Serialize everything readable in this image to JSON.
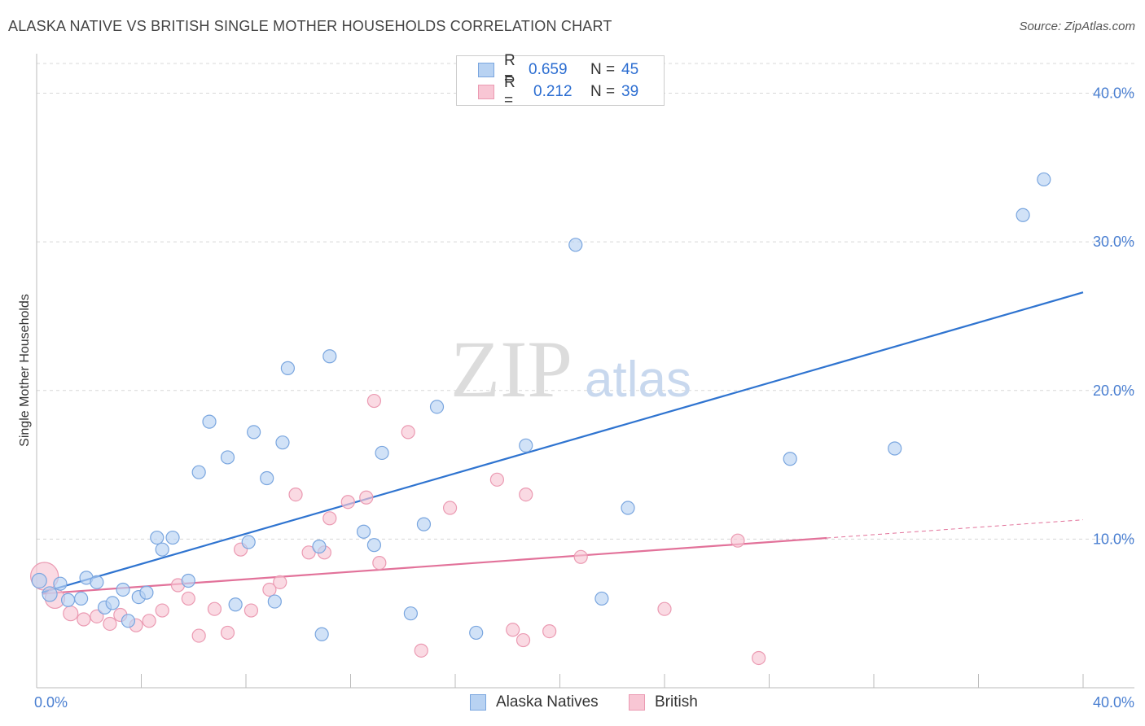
{
  "header": {
    "title": "ALASKA NATIVE VS BRITISH SINGLE MOTHER HOUSEHOLDS CORRELATION CHART",
    "source": "Source: ZipAtlas.com"
  },
  "watermark": {
    "zip": "ZIP",
    "atlas": "atlas"
  },
  "legend": {
    "series1": {
      "r_label": "R =",
      "r_value": "0.659",
      "n_label": "N =",
      "n_value": "45"
    },
    "series2": {
      "r_label": "R =",
      "r_value": "0.212",
      "n_label": "N =",
      "n_value": "39"
    }
  },
  "bottom_legend": {
    "series1": "Alaska Natives",
    "series2": "British"
  },
  "colors": {
    "blue_fill": "#b8d2f2",
    "blue_stroke": "#7aa6df",
    "blue_line": "#2f74d0",
    "pink_fill": "#f8c6d4",
    "pink_stroke": "#eb9ab2",
    "pink_line": "#e2729a",
    "grid": "#d8d8d8",
    "tick_text": "#4a7fd1"
  },
  "chart_data": {
    "type": "scatter",
    "title": "ALASKA NATIVE VS BRITISH SINGLE MOTHER HOUSEHOLDS CORRELATION CHART",
    "xlabel": "",
    "ylabel": "Single Mother Households",
    "xlim": [
      0,
      40
    ],
    "ylim": [
      0,
      42
    ],
    "x_tick_labels": [
      "0.0%",
      "40.0%"
    ],
    "y_ticks": [
      10,
      20,
      30,
      40
    ],
    "y_tick_labels": [
      "10.0%",
      "20.0%",
      "30.0%",
      "40.0%"
    ],
    "grid": true,
    "legend_position": "top-center",
    "series": [
      {
        "name": "Alaska Natives",
        "r": 0.659,
        "n": 45,
        "trend": {
          "x": [
            0,
            40
          ],
          "y": [
            6.3,
            26.6
          ],
          "dashed_from": null
        },
        "points": [
          {
            "x": 0.1,
            "y": 7.2,
            "s": 9
          },
          {
            "x": 0.5,
            "y": 6.3,
            "s": 9
          },
          {
            "x": 0.9,
            "y": 7.0,
            "s": 8
          },
          {
            "x": 1.2,
            "y": 5.9,
            "s": 8
          },
          {
            "x": 1.7,
            "y": 6.0,
            "s": 8
          },
          {
            "x": 1.9,
            "y": 7.4,
            "s": 8
          },
          {
            "x": 2.3,
            "y": 7.1,
            "s": 8
          },
          {
            "x": 2.6,
            "y": 5.4,
            "s": 8
          },
          {
            "x": 2.9,
            "y": 5.7,
            "s": 8
          },
          {
            "x": 3.3,
            "y": 6.6,
            "s": 8
          },
          {
            "x": 3.5,
            "y": 4.5,
            "s": 8
          },
          {
            "x": 3.9,
            "y": 6.1,
            "s": 8
          },
          {
            "x": 4.2,
            "y": 6.4,
            "s": 8
          },
          {
            "x": 4.6,
            "y": 10.1,
            "s": 8
          },
          {
            "x": 4.8,
            "y": 9.3,
            "s": 8
          },
          {
            "x": 5.2,
            "y": 10.1,
            "s": 8
          },
          {
            "x": 5.8,
            "y": 7.2,
            "s": 8
          },
          {
            "x": 6.2,
            "y": 14.5,
            "s": 8
          },
          {
            "x": 6.6,
            "y": 17.9,
            "s": 8
          },
          {
            "x": 7.3,
            "y": 15.5,
            "s": 8
          },
          {
            "x": 7.6,
            "y": 5.6,
            "s": 8
          },
          {
            "x": 8.1,
            "y": 9.8,
            "s": 8
          },
          {
            "x": 8.3,
            "y": 17.2,
            "s": 8
          },
          {
            "x": 8.8,
            "y": 14.1,
            "s": 8
          },
          {
            "x": 9.1,
            "y": 5.8,
            "s": 8
          },
          {
            "x": 9.4,
            "y": 16.5,
            "s": 8
          },
          {
            "x": 9.6,
            "y": 21.5,
            "s": 8
          },
          {
            "x": 10.8,
            "y": 9.5,
            "s": 8
          },
          {
            "x": 10.9,
            "y": 3.6,
            "s": 8
          },
          {
            "x": 11.2,
            "y": 22.3,
            "s": 8
          },
          {
            "x": 12.5,
            "y": 10.5,
            "s": 8
          },
          {
            "x": 12.9,
            "y": 9.6,
            "s": 8
          },
          {
            "x": 13.2,
            "y": 15.8,
            "s": 8
          },
          {
            "x": 14.3,
            "y": 5.0,
            "s": 8
          },
          {
            "x": 14.8,
            "y": 11.0,
            "s": 8
          },
          {
            "x": 15.3,
            "y": 18.9,
            "s": 8
          },
          {
            "x": 16.8,
            "y": 3.7,
            "s": 8
          },
          {
            "x": 18.7,
            "y": 16.3,
            "s": 8
          },
          {
            "x": 20.6,
            "y": 29.8,
            "s": 8
          },
          {
            "x": 21.6,
            "y": 6.0,
            "s": 8
          },
          {
            "x": 22.6,
            "y": 12.1,
            "s": 8
          },
          {
            "x": 28.8,
            "y": 15.4,
            "s": 8
          },
          {
            "x": 32.8,
            "y": 16.1,
            "s": 8
          },
          {
            "x": 37.7,
            "y": 31.8,
            "s": 8
          },
          {
            "x": 38.5,
            "y": 34.2,
            "s": 8
          }
        ]
      },
      {
        "name": "British",
        "r": 0.212,
        "n": 39,
        "trend": {
          "x": [
            0,
            40
          ],
          "y": [
            6.3,
            11.3
          ],
          "dashed_from": 30.2
        },
        "points": [
          {
            "x": 0.3,
            "y": 7.5,
            "s": 17
          },
          {
            "x": 0.7,
            "y": 6.0,
            "s": 12
          },
          {
            "x": 1.3,
            "y": 5.0,
            "s": 9
          },
          {
            "x": 1.8,
            "y": 4.6,
            "s": 8
          },
          {
            "x": 2.3,
            "y": 4.8,
            "s": 8
          },
          {
            "x": 2.8,
            "y": 4.3,
            "s": 8
          },
          {
            "x": 3.2,
            "y": 4.9,
            "s": 8
          },
          {
            "x": 3.8,
            "y": 4.2,
            "s": 8
          },
          {
            "x": 4.3,
            "y": 4.5,
            "s": 8
          },
          {
            "x": 4.8,
            "y": 5.2,
            "s": 8
          },
          {
            "x": 5.4,
            "y": 6.9,
            "s": 8
          },
          {
            "x": 5.8,
            "y": 6.0,
            "s": 8
          },
          {
            "x": 6.2,
            "y": 3.5,
            "s": 8
          },
          {
            "x": 6.8,
            "y": 5.3,
            "s": 8
          },
          {
            "x": 7.3,
            "y": 3.7,
            "s": 8
          },
          {
            "x": 7.8,
            "y": 9.3,
            "s": 8
          },
          {
            "x": 8.2,
            "y": 5.2,
            "s": 8
          },
          {
            "x": 8.9,
            "y": 6.6,
            "s": 8
          },
          {
            "x": 9.3,
            "y": 7.1,
            "s": 8
          },
          {
            "x": 9.9,
            "y": 13.0,
            "s": 8
          },
          {
            "x": 10.4,
            "y": 9.1,
            "s": 8
          },
          {
            "x": 11.0,
            "y": 9.1,
            "s": 8
          },
          {
            "x": 11.2,
            "y": 11.4,
            "s": 8
          },
          {
            "x": 11.9,
            "y": 12.5,
            "s": 8
          },
          {
            "x": 12.6,
            "y": 12.8,
            "s": 8
          },
          {
            "x": 12.9,
            "y": 19.3,
            "s": 8
          },
          {
            "x": 13.1,
            "y": 8.4,
            "s": 8
          },
          {
            "x": 14.2,
            "y": 17.2,
            "s": 8
          },
          {
            "x": 14.7,
            "y": 2.5,
            "s": 8
          },
          {
            "x": 15.8,
            "y": 12.1,
            "s": 8
          },
          {
            "x": 17.6,
            "y": 14.0,
            "s": 8
          },
          {
            "x": 18.2,
            "y": 3.9,
            "s": 8
          },
          {
            "x": 18.6,
            "y": 3.2,
            "s": 8
          },
          {
            "x": 18.7,
            "y": 13.0,
            "s": 8
          },
          {
            "x": 19.6,
            "y": 3.8,
            "s": 8
          },
          {
            "x": 20.8,
            "y": 8.8,
            "s": 8
          },
          {
            "x": 24.0,
            "y": 5.3,
            "s": 8
          },
          {
            "x": 26.8,
            "y": 9.9,
            "s": 8
          },
          {
            "x": 27.6,
            "y": 2.0,
            "s": 8
          }
        ]
      }
    ]
  }
}
